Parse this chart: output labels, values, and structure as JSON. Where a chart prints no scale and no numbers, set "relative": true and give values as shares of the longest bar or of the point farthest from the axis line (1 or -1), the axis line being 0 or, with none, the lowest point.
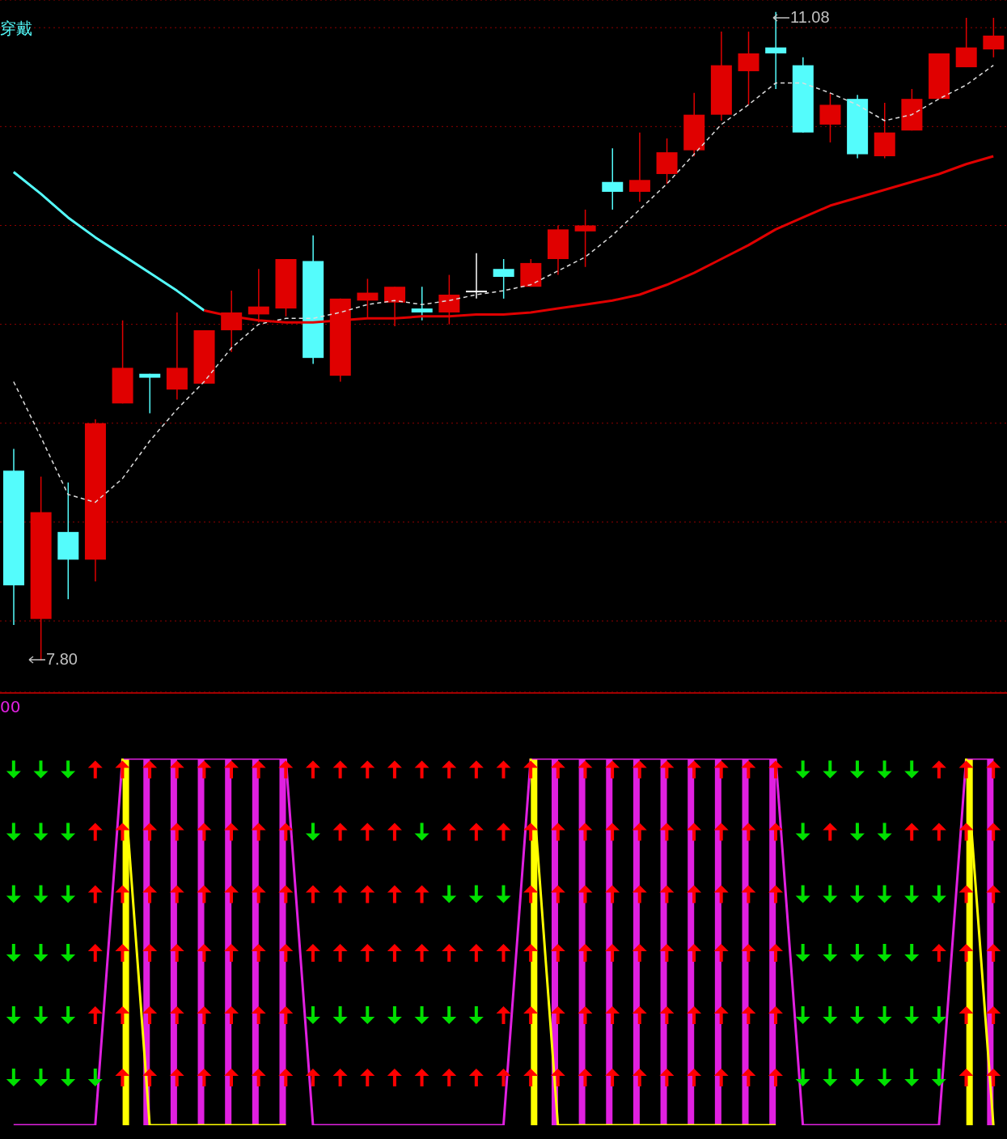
{
  "chart_data": [
    {
      "type": "candlestick",
      "subtitle": "穿戴",
      "categories": [
        null,
        null,
        null,
        null,
        null,
        null,
        null,
        null,
        null,
        null,
        null,
        null,
        null,
        null,
        null,
        null,
        null,
        null,
        null,
        null,
        null,
        null,
        null,
        null,
        null,
        null,
        null,
        null,
        null,
        null,
        null,
        null,
        null,
        null,
        null,
        null,
        null
      ],
      "ohlc": [
        [
          8.76,
          8.87,
          7.98,
          8.18
        ],
        [
          8.01,
          8.73,
          7.8,
          8.55
        ],
        [
          8.45,
          8.7,
          8.11,
          8.31
        ],
        [
          8.31,
          9.02,
          8.2,
          9.0
        ],
        [
          9.1,
          9.52,
          9.1,
          9.28
        ],
        [
          9.25,
          9.25,
          9.05,
          9.23
        ],
        [
          9.17,
          9.56,
          9.12,
          9.28
        ],
        [
          9.2,
          9.47,
          9.2,
          9.47
        ],
        [
          9.47,
          9.67,
          9.36,
          9.56
        ],
        [
          9.55,
          9.78,
          9.51,
          9.59
        ],
        [
          9.58,
          9.83,
          9.54,
          9.83
        ],
        [
          9.82,
          9.95,
          9.3,
          9.33
        ],
        [
          9.24,
          9.63,
          9.21,
          9.63
        ],
        [
          9.62,
          9.73,
          9.53,
          9.66
        ],
        [
          9.61,
          9.69,
          9.49,
          9.69
        ],
        [
          9.58,
          9.69,
          9.52,
          9.56
        ],
        [
          9.56,
          9.75,
          9.5,
          9.65
        ],
        [
          9.67,
          9.86,
          9.63,
          9.67
        ],
        [
          9.78,
          9.83,
          9.63,
          9.74
        ],
        [
          9.69,
          9.83,
          9.69,
          9.81
        ],
        [
          9.83,
          10.0,
          9.75,
          9.98
        ],
        [
          9.97,
          10.08,
          9.79,
          10.0
        ],
        [
          10.22,
          10.39,
          10.08,
          10.17
        ],
        [
          10.17,
          10.47,
          10.12,
          10.23
        ],
        [
          10.26,
          10.44,
          10.21,
          10.37
        ],
        [
          10.38,
          10.67,
          10.35,
          10.56
        ],
        [
          10.56,
          10.98,
          10.53,
          10.81
        ],
        [
          10.78,
          10.98,
          10.61,
          10.87
        ],
        [
          10.9,
          11.08,
          10.69,
          10.87
        ],
        [
          10.81,
          10.85,
          10.47,
          10.47
        ],
        [
          10.51,
          10.67,
          10.42,
          10.61
        ],
        [
          10.64,
          10.66,
          10.34,
          10.36
        ],
        [
          10.35,
          10.62,
          10.34,
          10.47
        ],
        [
          10.48,
          10.69,
          10.48,
          10.64
        ],
        [
          10.64,
          10.87,
          10.64,
          10.87
        ],
        [
          10.8,
          11.05,
          10.8,
          10.9
        ],
        [
          10.89,
          11.05,
          10.85,
          10.96
        ]
      ],
      "colors": [
        "#54fcfc",
        "#e00000",
        "#54fcfc",
        "#e00000",
        "#e00000",
        "#54fcfc",
        "#e00000",
        "#e00000",
        "#e00000",
        "#e00000",
        "#e00000",
        "#54fcfc",
        "#e00000",
        "#e00000",
        "#e00000",
        "#54fcfc",
        "#e00000",
        "#ffffff",
        "#54fcfc",
        "#e00000",
        "#e00000",
        "#e00000",
        "#54fcfc",
        "#e00000",
        "#e00000",
        "#e00000",
        "#e00000",
        "#e00000",
        "#54fcfc",
        "#54fcfc",
        "#e00000",
        "#54fcfc",
        "#e00000",
        "#e00000",
        "#e00000",
        "#e00000",
        "#e00000"
      ],
      "series": [
        {
          "type": "line",
          "color": "#dddddd",
          "line_style": "dashed",
          "values": [
            9.21,
            8.93,
            8.64,
            8.6,
            8.72,
            8.91,
            9.07,
            9.21,
            9.38,
            9.5,
            9.53,
            9.53,
            9.56,
            9.6,
            9.62,
            9.6,
            9.62,
            9.65,
            9.67,
            9.7,
            9.77,
            9.84,
            9.95,
            10.08,
            10.21,
            10.36,
            10.51,
            10.61,
            10.72,
            10.72,
            10.67,
            10.61,
            10.53,
            10.56,
            10.64,
            10.71,
            10.81
          ]
        },
        {
          "type": "line",
          "color": "#54fcfc",
          "line_style": "solid",
          "values": [
            10.27,
            10.16,
            10.04,
            9.94,
            9.85,
            9.76,
            9.67,
            9.57,
            null,
            null,
            null,
            null,
            null,
            null,
            null,
            null,
            null,
            null,
            null,
            null,
            null,
            null,
            null,
            null,
            null,
            null,
            null,
            null,
            null,
            null,
            null,
            null,
            null,
            null,
            null,
            null,
            null
          ]
        },
        {
          "type": "line",
          "color": "#e00000",
          "line_style": "solid",
          "values": [
            null,
            null,
            null,
            null,
            null,
            null,
            null,
            9.57,
            9.54,
            9.52,
            9.51,
            9.51,
            9.52,
            9.53,
            9.53,
            9.54,
            9.54,
            9.55,
            9.55,
            9.56,
            9.58,
            9.6,
            9.62,
            9.65,
            9.7,
            9.76,
            9.83,
            9.9,
            9.98,
            10.04,
            10.1,
            10.14,
            10.18,
            10.22,
            10.26,
            10.31,
            10.35
          ]
        }
      ],
      "annotations": [
        "11.08",
        "7.80"
      ],
      "ylim": [
        7.64,
        11.14
      ],
      "yticks": [
        {
          "value": 8.0,
          "label": null
        },
        {
          "value": 8.5,
          "label": null
        },
        {
          "value": 9.0,
          "label": null
        },
        {
          "value": 9.5,
          "label": null
        },
        {
          "value": 10.0,
          "label": null
        },
        {
          "value": 10.5,
          "label": null
        },
        {
          "value": 11.0,
          "label": null
        }
      ],
      "grid": "y",
      "marker": "none",
      "legend": false,
      "tick_labels": false
    },
    {
      "type": "line",
      "relative": true,
      "subtitle": "00",
      "categories": [
        null,
        null,
        null,
        null,
        null,
        null,
        null,
        null,
        null,
        null,
        null,
        null,
        null,
        null,
        null,
        null,
        null,
        null,
        null,
        null,
        null,
        null,
        null,
        null,
        null,
        null,
        null,
        null,
        null,
        null,
        null,
        null,
        null,
        null,
        null,
        null,
        null
      ],
      "series": [
        {
          "type": "bar",
          "color": "#e020e0",
          "values": [
            null,
            null,
            null,
            null,
            null,
            1,
            1,
            1,
            1,
            1,
            1,
            null,
            null,
            null,
            null,
            null,
            null,
            null,
            null,
            null,
            1,
            1,
            1,
            1,
            1,
            1,
            1,
            1,
            1,
            null,
            null,
            null,
            null,
            null,
            null,
            null,
            1
          ]
        },
        {
          "type": "bar",
          "color": "#ffff00",
          "values": [
            null,
            null,
            null,
            null,
            1,
            null,
            null,
            null,
            null,
            null,
            null,
            null,
            null,
            null,
            null,
            null,
            null,
            null,
            null,
            1,
            null,
            null,
            null,
            null,
            null,
            null,
            null,
            null,
            null,
            null,
            null,
            null,
            null,
            null,
            null,
            1,
            null
          ]
        },
        {
          "type": "line",
          "color": "#e020e0",
          "values": [
            0,
            0,
            0,
            0,
            1,
            1,
            1,
            1,
            1,
            1,
            1,
            0,
            0,
            0,
            0,
            0,
            0,
            0,
            0,
            1,
            1,
            1,
            1,
            1,
            1,
            1,
            1,
            1,
            1,
            0,
            0,
            0,
            0,
            0,
            0,
            1,
            1
          ]
        },
        {
          "type": "line",
          "color": "#ffff00",
          "values": [
            null,
            null,
            null,
            null,
            1,
            0,
            0,
            0,
            0,
            0,
            0,
            null,
            null,
            null,
            null,
            null,
            null,
            null,
            null,
            1,
            0,
            0,
            0,
            0,
            0,
            0,
            0,
            0,
            0,
            null,
            null,
            null,
            null,
            null,
            null,
            1,
            0
          ]
        },
        {
          "type": "scatter",
          "color": "#ff0000",
          "values": [
            null,
            null,
            null,
            0.97,
            0.97,
            0.97,
            0.97,
            0.97,
            0.97,
            0.97,
            0.97,
            0.97,
            0.97,
            0.97,
            0.97,
            0.97,
            0.97,
            0.97,
            0.97,
            0.97,
            0.97,
            0.97,
            0.97,
            0.97,
            0.97,
            0.97,
            0.97,
            0.97,
            0.97,
            null,
            null,
            null,
            null,
            null,
            0.97,
            0.97,
            0.97
          ]
        },
        {
          "type": "scatter",
          "color": "#ff0000",
          "values": [
            null,
            null,
            null,
            0.8,
            0.8,
            0.8,
            0.8,
            0.8,
            0.8,
            0.8,
            0.8,
            null,
            0.8,
            0.8,
            0.8,
            null,
            0.8,
            0.8,
            0.8,
            0.8,
            0.8,
            0.8,
            0.8,
            0.8,
            0.8,
            0.8,
            0.8,
            0.8,
            0.8,
            null,
            0.8,
            null,
            null,
            0.8,
            0.8,
            0.8,
            0.8
          ]
        },
        {
          "type": "scatter",
          "color": "#ff0000",
          "values": [
            null,
            null,
            null,
            0.63,
            0.63,
            0.63,
            0.63,
            0.63,
            0.63,
            0.63,
            0.63,
            0.63,
            0.63,
            0.63,
            0.63,
            0.63,
            null,
            null,
            null,
            0.63,
            0.63,
            0.63,
            0.63,
            0.63,
            0.63,
            0.63,
            0.63,
            0.63,
            0.63,
            null,
            null,
            null,
            null,
            null,
            null,
            0.63,
            0.63
          ]
        },
        {
          "type": "scatter",
          "color": "#ff0000",
          "values": [
            null,
            null,
            null,
            0.47,
            0.47,
            0.47,
            0.47,
            0.47,
            0.47,
            0.47,
            0.47,
            0.47,
            0.47,
            0.47,
            0.47,
            0.47,
            0.47,
            0.47,
            0.47,
            0.47,
            0.47,
            0.47,
            0.47,
            0.47,
            0.47,
            0.47,
            0.47,
            0.47,
            0.47,
            null,
            null,
            null,
            null,
            null,
            0.47,
            0.47,
            0.47
          ]
        },
        {
          "type": "scatter",
          "color": "#ff0000",
          "values": [
            null,
            null,
            null,
            0.3,
            0.3,
            0.3,
            0.3,
            0.3,
            0.3,
            0.3,
            0.3,
            null,
            null,
            null,
            null,
            null,
            null,
            null,
            0.3,
            0.3,
            0.3,
            0.3,
            0.3,
            0.3,
            0.3,
            0.3,
            0.3,
            0.3,
            0.3,
            null,
            null,
            null,
            null,
            null,
            null,
            0.3,
            0.3
          ]
        },
        {
          "type": "scatter",
          "color": "#ff0000",
          "values": [
            null,
            null,
            null,
            null,
            0.13,
            0.13,
            0.13,
            0.13,
            0.13,
            0.13,
            0.13,
            0.13,
            0.13,
            0.13,
            0.13,
            0.13,
            0.13,
            0.13,
            0.13,
            0.13,
            0.13,
            0.13,
            0.13,
            0.13,
            0.13,
            0.13,
            0.13,
            0.13,
            0.13,
            null,
            null,
            null,
            null,
            null,
            null,
            0.13,
            0.13
          ]
        },
        {
          "type": "scatter",
          "color": "#00e000",
          "values": [
            0.97,
            0.97,
            0.97,
            null,
            null,
            null,
            null,
            null,
            null,
            null,
            null,
            null,
            null,
            null,
            null,
            null,
            null,
            null,
            null,
            null,
            null,
            null,
            null,
            null,
            null,
            null,
            null,
            null,
            null,
            0.97,
            0.97,
            0.97,
            0.97,
            0.97,
            null,
            null,
            null
          ]
        },
        {
          "type": "scatter",
          "color": "#00e000",
          "values": [
            0.8,
            0.8,
            0.8,
            null,
            null,
            null,
            null,
            null,
            null,
            null,
            null,
            0.8,
            null,
            null,
            null,
            0.8,
            null,
            null,
            null,
            null,
            null,
            null,
            null,
            null,
            null,
            null,
            null,
            null,
            null,
            0.8,
            null,
            0.8,
            0.8,
            null,
            null,
            null,
            null
          ]
        },
        {
          "type": "scatter",
          "color": "#00e000",
          "values": [
            0.63,
            0.63,
            0.63,
            null,
            null,
            null,
            null,
            null,
            null,
            null,
            null,
            null,
            null,
            null,
            null,
            null,
            0.63,
            0.63,
            0.63,
            null,
            null,
            null,
            null,
            null,
            null,
            null,
            null,
            null,
            null,
            0.63,
            0.63,
            0.63,
            0.63,
            0.63,
            0.63,
            null,
            null
          ]
        },
        {
          "type": "scatter",
          "color": "#00e000",
          "values": [
            0.47,
            0.47,
            0.47,
            null,
            null,
            null,
            null,
            null,
            null,
            null,
            null,
            null,
            null,
            null,
            null,
            null,
            null,
            null,
            null,
            null,
            null,
            null,
            null,
            null,
            null,
            null,
            null,
            null,
            null,
            0.47,
            0.47,
            0.47,
            0.47,
            0.47,
            null,
            null,
            null
          ]
        },
        {
          "type": "scatter",
          "color": "#00e000",
          "values": [
            0.3,
            0.3,
            0.3,
            null,
            null,
            null,
            null,
            null,
            null,
            null,
            null,
            0.3,
            0.3,
            0.3,
            0.3,
            0.3,
            0.3,
            0.3,
            null,
            null,
            null,
            null,
            null,
            null,
            null,
            null,
            null,
            null,
            null,
            0.3,
            0.3,
            0.3,
            0.3,
            0.3,
            0.3,
            null,
            null
          ]
        },
        {
          "type": "scatter",
          "color": "#00e000",
          "values": [
            0.13,
            0.13,
            0.13,
            0.13,
            null,
            null,
            null,
            null,
            null,
            null,
            null,
            null,
            null,
            null,
            null,
            null,
            null,
            null,
            null,
            null,
            null,
            null,
            null,
            null,
            null,
            null,
            null,
            null,
            null,
            0.13,
            0.13,
            0.13,
            0.13,
            0.13,
            0.13,
            null,
            null
          ]
        }
      ],
      "marker": "none",
      "legend": false,
      "tick_labels": false
    }
  ]
}
